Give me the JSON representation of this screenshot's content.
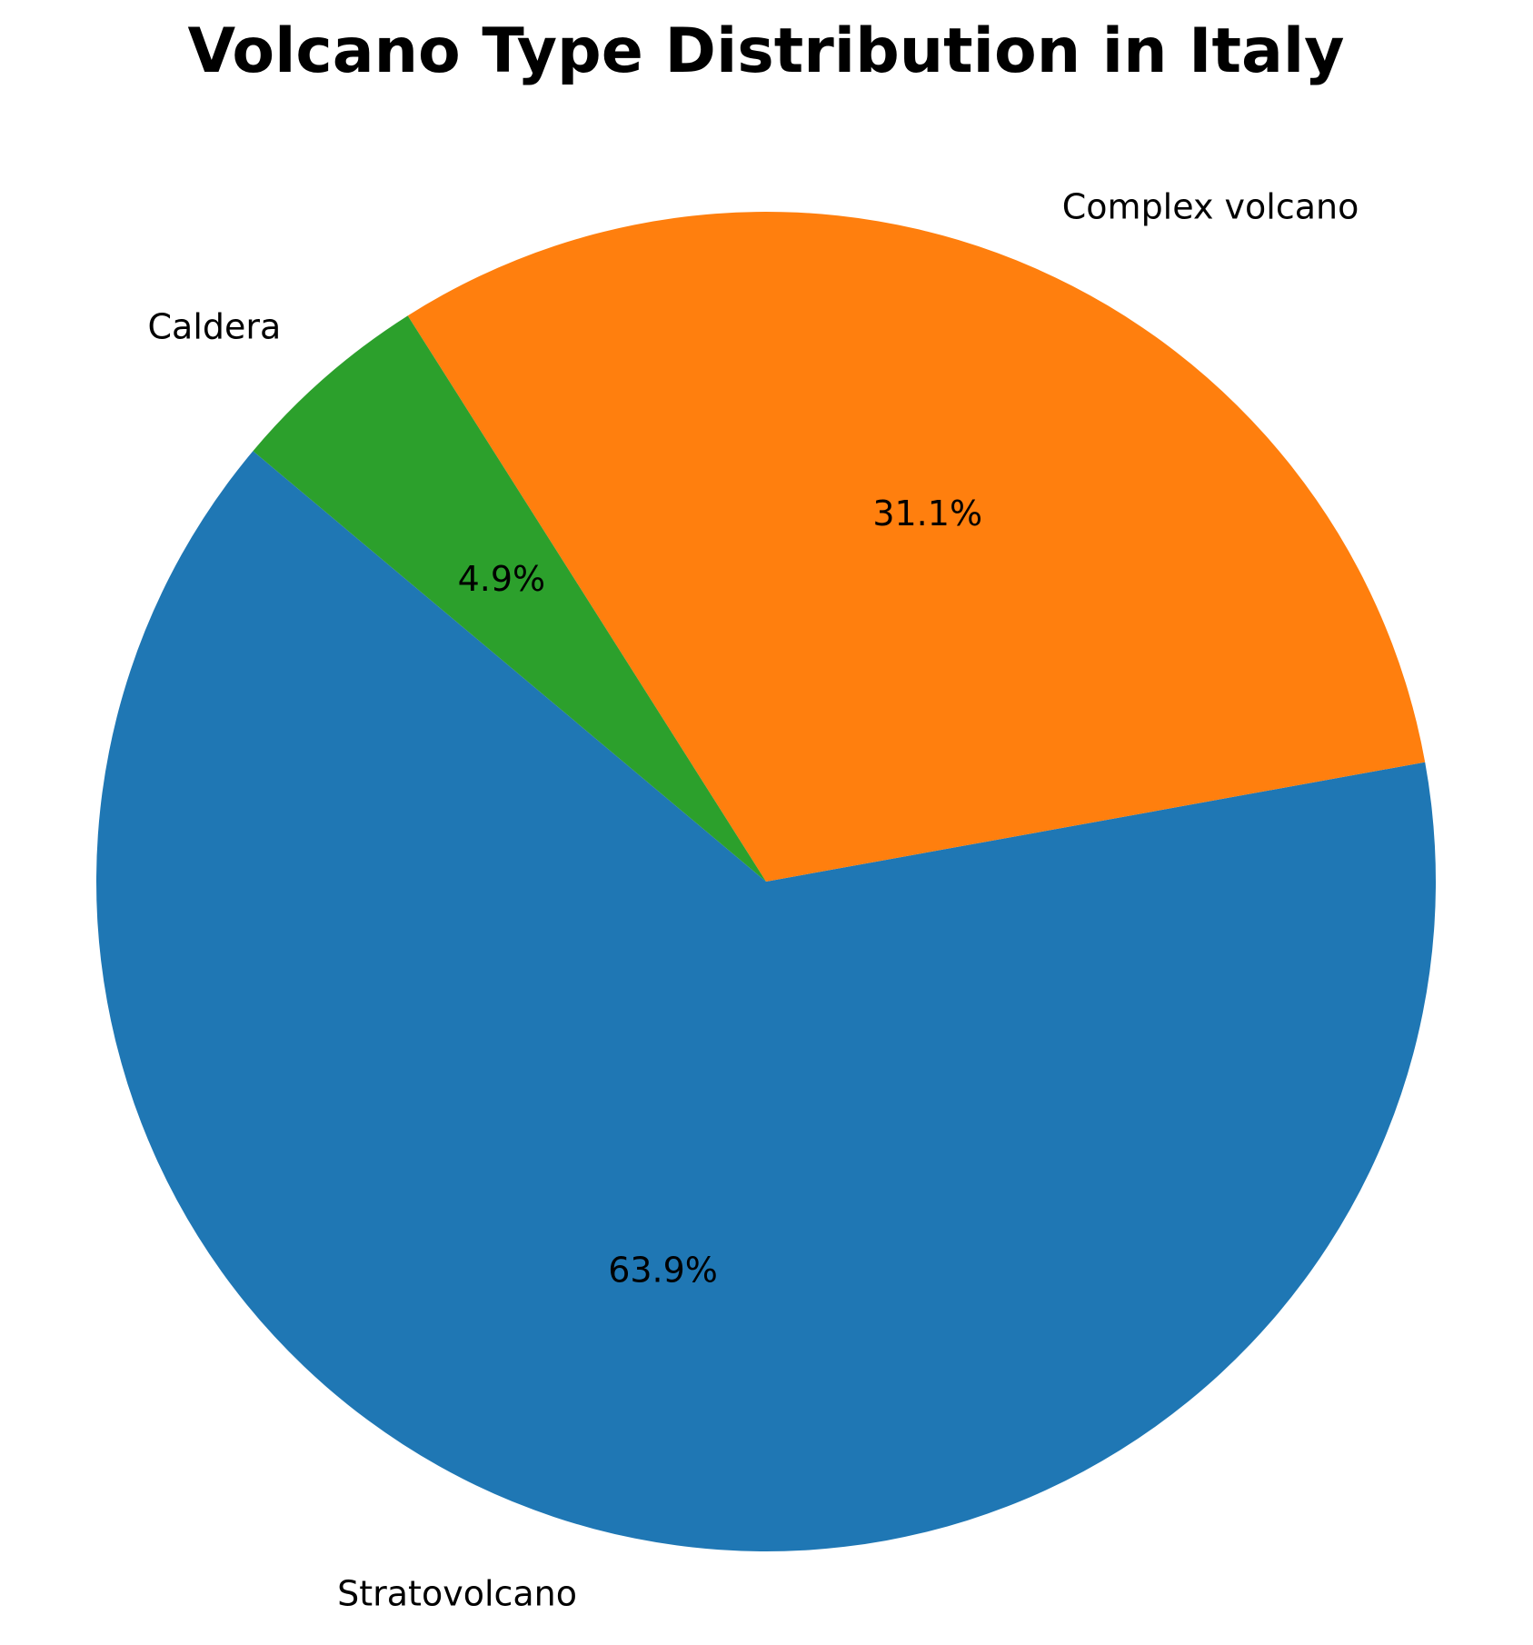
{
  "chart_data": {
    "type": "pie",
    "title": "Volcano Type Distribution in Italy",
    "slices": [
      {
        "label": "Stratovolcano",
        "percent": 63.9,
        "display": "63.9%",
        "color": "#1f77b4"
      },
      {
        "label": "Complex volcano",
        "percent": 31.1,
        "display": "31.1%",
        "color": "#ff7f0e"
      },
      {
        "label": "Caldera",
        "percent": 4.9,
        "display": "4.9%",
        "color": "#2ca02c"
      }
    ],
    "start_angle_deg": 140,
    "direction": "counterclockwise",
    "legend": "none"
  }
}
